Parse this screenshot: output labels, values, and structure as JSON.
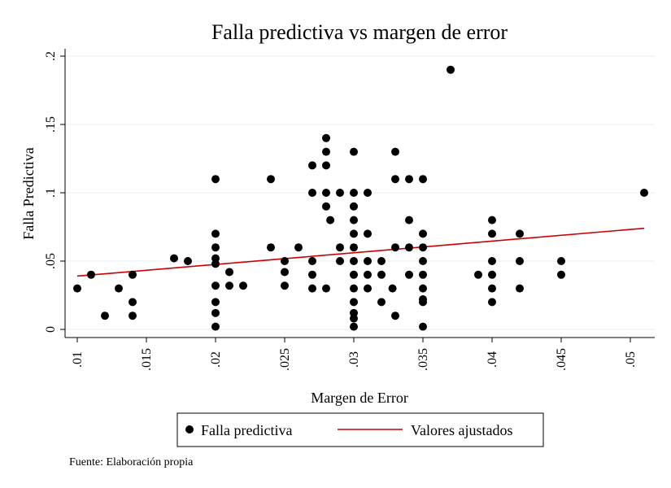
{
  "chart_data": {
    "type": "scatter",
    "title": "Falla predictiva vs margen de error",
    "xlabel": "Margen de Error",
    "ylabel": "Falla Predictiva",
    "xlim": [
      0.01,
      0.051
    ],
    "ylim": [
      0,
      0.2
    ],
    "x_ticks": [
      0.01,
      0.015,
      0.02,
      0.025,
      0.03,
      0.035,
      0.04,
      0.045,
      0.05
    ],
    "x_tick_labels": [
      ".01",
      ".015",
      ".02",
      ".025",
      ".03",
      ".035",
      ".04",
      ".045",
      ".05"
    ],
    "y_ticks": [
      0,
      0.05,
      0.1,
      0.15,
      0.2
    ],
    "y_tick_labels": [
      "0",
      ".05",
      ".1",
      ".15",
      ".2"
    ],
    "grid": "horizontal",
    "legend_position": "bottom",
    "series": [
      {
        "name": "Falla predictiva",
        "kind": "scatter",
        "color": "#000000",
        "points": [
          [
            0.01,
            0.03
          ],
          [
            0.011,
            0.04
          ],
          [
            0.012,
            0.01
          ],
          [
            0.013,
            0.03
          ],
          [
            0.014,
            0.04
          ],
          [
            0.014,
            0.02
          ],
          [
            0.014,
            0.01
          ],
          [
            0.017,
            0.052
          ],
          [
            0.018,
            0.05
          ],
          [
            0.02,
            0.11
          ],
          [
            0.02,
            0.07
          ],
          [
            0.02,
            0.06
          ],
          [
            0.02,
            0.052
          ],
          [
            0.02,
            0.048
          ],
          [
            0.02,
            0.032
          ],
          [
            0.02,
            0.02
          ],
          [
            0.02,
            0.012
          ],
          [
            0.02,
            0.002
          ],
          [
            0.021,
            0.042
          ],
          [
            0.021,
            0.032
          ],
          [
            0.022,
            0.032
          ],
          [
            0.024,
            0.11
          ],
          [
            0.024,
            0.06
          ],
          [
            0.025,
            0.05
          ],
          [
            0.025,
            0.042
          ],
          [
            0.025,
            0.032
          ],
          [
            0.026,
            0.06
          ],
          [
            0.027,
            0.12
          ],
          [
            0.027,
            0.1
          ],
          [
            0.027,
            0.05
          ],
          [
            0.027,
            0.04
          ],
          [
            0.027,
            0.03
          ],
          [
            0.028,
            0.14
          ],
          [
            0.028,
            0.13
          ],
          [
            0.028,
            0.12
          ],
          [
            0.028,
            0.1
          ],
          [
            0.028,
            0.09
          ],
          [
            0.028,
            0.03
          ],
          [
            0.0283,
            0.08
          ],
          [
            0.029,
            0.1
          ],
          [
            0.029,
            0.06
          ],
          [
            0.029,
            0.05
          ],
          [
            0.03,
            0.13
          ],
          [
            0.03,
            0.1
          ],
          [
            0.03,
            0.09
          ],
          [
            0.03,
            0.08
          ],
          [
            0.03,
            0.07
          ],
          [
            0.03,
            0.06
          ],
          [
            0.03,
            0.05
          ],
          [
            0.03,
            0.04
          ],
          [
            0.03,
            0.03
          ],
          [
            0.03,
            0.02
          ],
          [
            0.03,
            0.012
          ],
          [
            0.03,
            0.008
          ],
          [
            0.03,
            0.002
          ],
          [
            0.031,
            0.1
          ],
          [
            0.031,
            0.07
          ],
          [
            0.031,
            0.05
          ],
          [
            0.031,
            0.04
          ],
          [
            0.031,
            0.03
          ],
          [
            0.032,
            0.05
          ],
          [
            0.032,
            0.04
          ],
          [
            0.032,
            0.02
          ],
          [
            0.0328,
            0.03
          ],
          [
            0.033,
            0.13
          ],
          [
            0.033,
            0.11
          ],
          [
            0.033,
            0.06
          ],
          [
            0.033,
            0.01
          ],
          [
            0.034,
            0.11
          ],
          [
            0.034,
            0.08
          ],
          [
            0.034,
            0.06
          ],
          [
            0.034,
            0.04
          ],
          [
            0.035,
            0.11
          ],
          [
            0.035,
            0.07
          ],
          [
            0.035,
            0.06
          ],
          [
            0.035,
            0.05
          ],
          [
            0.035,
            0.04
          ],
          [
            0.035,
            0.03
          ],
          [
            0.035,
            0.022
          ],
          [
            0.035,
            0.02
          ],
          [
            0.035,
            0.002
          ],
          [
            0.037,
            0.19
          ],
          [
            0.039,
            0.04
          ],
          [
            0.04,
            0.08
          ],
          [
            0.04,
            0.07
          ],
          [
            0.04,
            0.05
          ],
          [
            0.04,
            0.04
          ],
          [
            0.04,
            0.03
          ],
          [
            0.04,
            0.02
          ],
          [
            0.042,
            0.07
          ],
          [
            0.042,
            0.05
          ],
          [
            0.042,
            0.03
          ],
          [
            0.045,
            0.05
          ],
          [
            0.045,
            0.04
          ],
          [
            0.051,
            0.1
          ]
        ]
      },
      {
        "name": "Valores ajustados",
        "kind": "line",
        "color": "#cc0000",
        "points": [
          [
            0.01,
            0.039
          ],
          [
            0.051,
            0.074
          ]
        ]
      }
    ]
  },
  "footer": {
    "source": "Fuente: Elaboración propia"
  }
}
